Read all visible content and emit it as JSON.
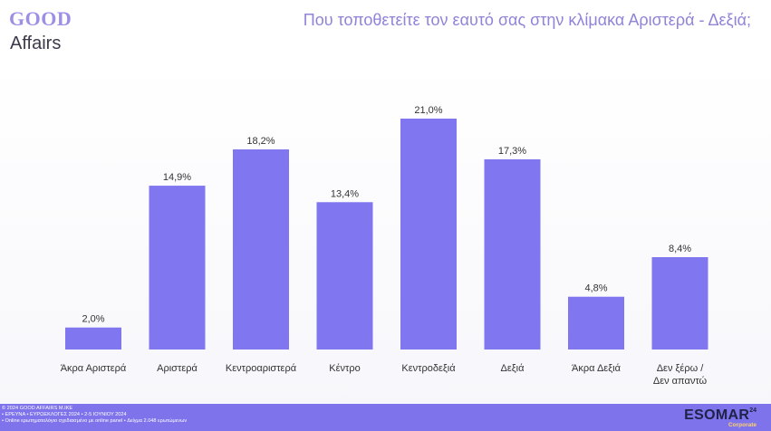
{
  "logo": {
    "top": "GOOD",
    "bottom": "Affairs"
  },
  "title": "Που τοποθετείτε τον εαυτό σας στην κλίμακα Αριστερά - Δεξιά;",
  "chart_data": {
    "type": "bar",
    "categories": [
      "Άκρα Αριστερά",
      "Αριστερά",
      "Κεντροαριστερά",
      "Κέντρο",
      "Κεντροδεξιά",
      "Δεξιά",
      "Άκρα Δεξιά",
      "Δεν ξέρω / Δεν απαντώ"
    ],
    "values": [
      2.0,
      14.9,
      18.2,
      13.4,
      21.0,
      17.3,
      4.8,
      8.4
    ],
    "value_labels": [
      "2,0%",
      "14,9%",
      "18,2%",
      "13,4%",
      "21,0%",
      "17,3%",
      "4,8%",
      "8,4%"
    ],
    "ylim": [
      0,
      21.0
    ],
    "grid": false,
    "legend": "none",
    "bar_color": "#8077f0"
  },
  "footer": {
    "lines": [
      "© 2024 GOOD AFFAIRS M.IKE",
      "• ΕΡΕΥΝΑ • ΕΥΡΩΕΚΛΟΓΕΣ 2024 • 2-5 ΙΟΥΝΙΟΥ 2024",
      "• Online ερωτηματολόγιο σχεδιασμένο με online panel  • Δείγμα 2.048 ερωτώμενων"
    ],
    "brand": "ESOMAR",
    "brand_sup": "24",
    "brand_sub": "Corporate"
  }
}
